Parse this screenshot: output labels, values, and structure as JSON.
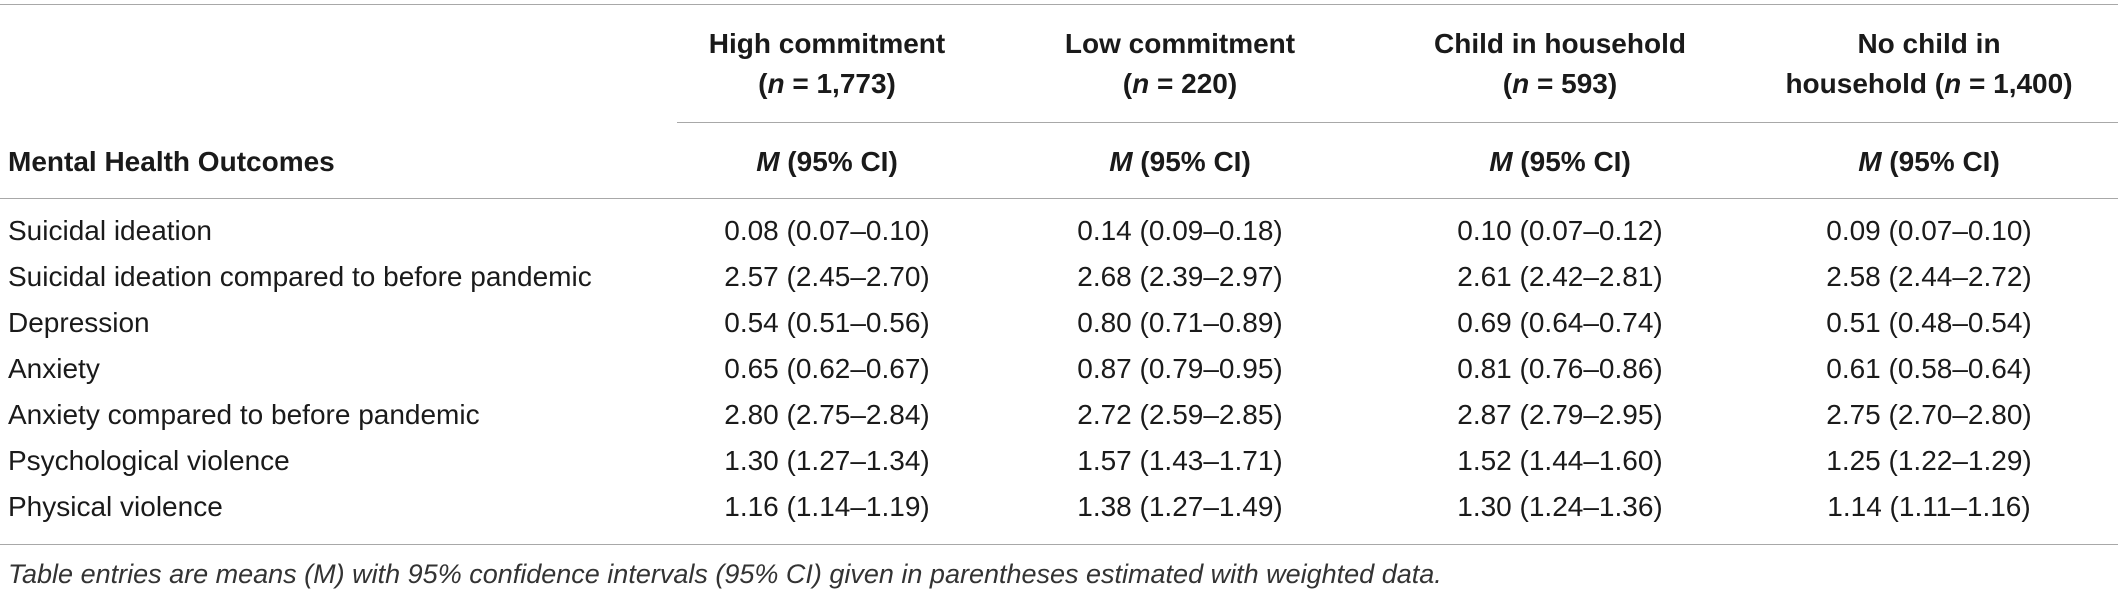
{
  "columns": {
    "high": {
      "line1": "High commitment",
      "n_prefix": "(",
      "n": "n",
      "n_suffix": " = 1,773)"
    },
    "low": {
      "line1": "Low commitment",
      "n_prefix": "(",
      "n": "n",
      "n_suffix": " = 220)"
    },
    "child": {
      "line1": "Child in household",
      "n_prefix": "(",
      "n": "n",
      "n_suffix": " = 593)"
    },
    "nochild": {
      "line1": "No child in",
      "line2_prefix": "household (",
      "n": "n",
      "n_suffix": " = 1,400)"
    }
  },
  "row_header": "Mental Health Outcomes",
  "stat_label": {
    "m": "M",
    "rest": " (95% CI)"
  },
  "rows": [
    {
      "label": "Suicidal ideation",
      "high": "0.08 (0.07–0.10)",
      "low": "0.14 (0.09–0.18)",
      "child": "0.10 (0.07–0.12)",
      "nochild": "0.09 (0.07–0.10)"
    },
    {
      "label": "Suicidal ideation compared to before pandemic",
      "high": "2.57 (2.45–2.70)",
      "low": "2.68 (2.39–2.97)",
      "child": "2.61 (2.42–2.81)",
      "nochild": "2.58 (2.44–2.72)"
    },
    {
      "label": "Depression",
      "high": "0.54 (0.51–0.56)",
      "low": "0.80 (0.71–0.89)",
      "child": "0.69 (0.64–0.74)",
      "nochild": "0.51 (0.48–0.54)"
    },
    {
      "label": "Anxiety",
      "high": "0.65 (0.62–0.67)",
      "low": "0.87 (0.79–0.95)",
      "child": "0.81 (0.76–0.86)",
      "nochild": "0.61 (0.58–0.64)"
    },
    {
      "label": "Anxiety compared to before pandemic",
      "high": "2.80 (2.75–2.84)",
      "low": "2.72 (2.59–2.85)",
      "child": "2.87 (2.79–2.95)",
      "nochild": "2.75 (2.70–2.80)"
    },
    {
      "label": "Psychological violence",
      "high": "1.30 (1.27–1.34)",
      "low": "1.57 (1.43–1.71)",
      "child": "1.52 (1.44–1.60)",
      "nochild": "1.25 (1.22–1.29)"
    },
    {
      "label": "Physical violence",
      "high": "1.16 (1.14–1.19)",
      "low": "1.38 (1.27–1.49)",
      "child": "1.30 (1.24–1.36)",
      "nochild": "1.14 (1.11–1.16)"
    }
  ],
  "note": "Table entries are means (M) with 95% confidence intervals (95% CI) given in parentheses estimated with weighted data."
}
